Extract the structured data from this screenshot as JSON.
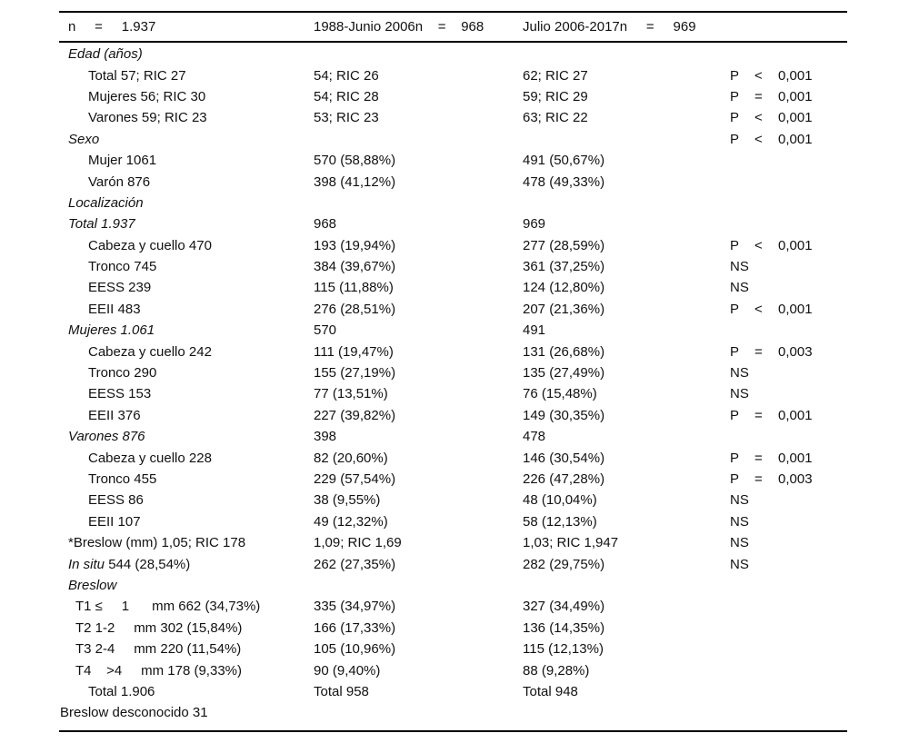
{
  "table": {
    "header": {
      "col1": "n     =     1.937",
      "col2": "1988-Junio 2006n    =    968",
      "col3": "Julio 2006-2017n     =     969"
    },
    "rows": [
      {
        "li": "Edad (años)",
        "lr": "",
        "ind": 0,
        "c2": "",
        "c3": "",
        "p": "",
        "op": "",
        "v": ""
      },
      {
        "li": "",
        "lr": "Total 57; RIC 27",
        "ind": 1,
        "c2": "54; RIC 26",
        "c3": "62; RIC 27",
        "p": "P",
        "op": "<",
        "v": "0,001"
      },
      {
        "li": "",
        "lr": "Mujeres 56; RIC 30",
        "ind": 1,
        "c2": "54; RIC 28",
        "c3": "59; RIC 29",
        "p": "P",
        "op": "=",
        "v": "0,001"
      },
      {
        "li": "",
        "lr": "Varones 59; RIC 23",
        "ind": 1,
        "c2": "53; RIC 23",
        "c3": "63; RIC 22",
        "p": "P",
        "op": "<",
        "v": "0,001"
      },
      {
        "li": "Sexo",
        "lr": "",
        "ind": 0,
        "c2": "",
        "c3": "",
        "p": "P",
        "op": "<",
        "v": "0,001"
      },
      {
        "li": "",
        "lr": "Mujer 1061",
        "ind": 1,
        "c2": "570 (58,88%)",
        "c3": "491 (50,67%)",
        "p": "",
        "op": "",
        "v": ""
      },
      {
        "li": "",
        "lr": "Varón 876",
        "ind": 1,
        "c2": "398 (41,12%)",
        "c3": "478 (49,33%)",
        "p": "",
        "op": "",
        "v": ""
      },
      {
        "li": "Localización",
        "lr": "",
        "ind": 0,
        "c2": "",
        "c3": "",
        "p": "",
        "op": "",
        "v": ""
      },
      {
        "li": "Total 1.937",
        "lr": "",
        "ind": 0,
        "c2": "968",
        "c3": "969",
        "p": "",
        "op": "",
        "v": ""
      },
      {
        "li": "",
        "lr": "Cabeza y cuello 470",
        "ind": 1,
        "c2": "193 (19,94%)",
        "c3": "277 (28,59%)",
        "p": "P",
        "op": "<",
        "v": "0,001"
      },
      {
        "li": "",
        "lr": "Tronco 745",
        "ind": 1,
        "c2": "384 (39,67%)",
        "c3": "361 (37,25%)",
        "p": "NS",
        "op": "",
        "v": ""
      },
      {
        "li": "",
        "lr": "EESS 239",
        "ind": 1,
        "c2": "115 (11,88%)",
        "c3": "124 (12,80%)",
        "p": "NS",
        "op": "",
        "v": ""
      },
      {
        "li": "",
        "lr": "EEII 483",
        "ind": 1,
        "c2": "276 (28,51%)",
        "c3": "207 (21,36%)",
        "p": "P",
        "op": "<",
        "v": "0,001"
      },
      {
        "li": "Mujeres 1.061",
        "lr": "",
        "ind": 0,
        "c2": "570",
        "c3": "491",
        "p": "",
        "op": "",
        "v": ""
      },
      {
        "li": "",
        "lr": "Cabeza y cuello 242",
        "ind": 1,
        "c2": "111 (19,47%)",
        "c3": "131 (26,68%)",
        "p": "P",
        "op": "=",
        "v": "0,003"
      },
      {
        "li": "",
        "lr": "Tronco 290",
        "ind": 1,
        "c2": "155 (27,19%)",
        "c3": "135 (27,49%)",
        "p": "NS",
        "op": "",
        "v": ""
      },
      {
        "li": "",
        "lr": "EESS 153",
        "ind": 1,
        "c2": "77 (13,51%)",
        "c3": "76 (15,48%)",
        "p": "NS",
        "op": "",
        "v": ""
      },
      {
        "li": "",
        "lr": "EEII 376",
        "ind": 1,
        "c2": "227 (39,82%)",
        "c3": "149 (30,35%)",
        "p": "P",
        "op": "=",
        "v": "0,001"
      },
      {
        "li": "Varones 876",
        "lr": "",
        "ind": 0,
        "c2": "398",
        "c3": "478",
        "p": "",
        "op": "",
        "v": ""
      },
      {
        "li": "",
        "lr": "Cabeza y cuello 228",
        "ind": 1,
        "c2": "82 (20,60%)",
        "c3": "146 (30,54%)",
        "p": "P",
        "op": "=",
        "v": "0,001"
      },
      {
        "li": "",
        "lr": "Tronco 455",
        "ind": 1,
        "c2": "229 (57,54%)",
        "c3": "226 (47,28%)",
        "p": "P",
        "op": "=",
        "v": "0,003"
      },
      {
        "li": "",
        "lr": "EESS 86",
        "ind": 1,
        "c2": "38 (9,55%)",
        "c3": "48 (10,04%)",
        "p": "NS",
        "op": "",
        "v": ""
      },
      {
        "li": "",
        "lr": "EEII 107",
        "ind": 1,
        "c2": "49 (12,32%)",
        "c3": "58 (12,13%)",
        "p": "NS",
        "op": "",
        "v": ""
      },
      {
        "li": "",
        "lr": "*Breslow (mm) 1,05; RIC 178",
        "ind": 0,
        "c2": "1,09; RIC 1,69",
        "c3": "1,03; RIC 1,947",
        "p": "NS",
        "op": "",
        "v": ""
      },
      {
        "li": "In situ",
        "lr": " 544 (28,54%)",
        "ind": 0,
        "c2": "262 (27,35%)",
        "c3": "282 (29,75%)",
        "p": "NS",
        "op": "",
        "v": ""
      },
      {
        "li": "Breslow",
        "lr": "",
        "ind": 0,
        "c2": "",
        "c3": "",
        "p": "",
        "op": "",
        "v": ""
      },
      {
        "li": "",
        "lr": "T1 ≤     1      mm 662 (34,73%)",
        "ind": 2,
        "c2": "335 (34,97%)",
        "c3": "327 (34,49%)",
        "p": "",
        "op": "",
        "v": ""
      },
      {
        "li": "",
        "lr": "T2 1-2     mm 302 (15,84%)",
        "ind": 2,
        "c2": "166 (17,33%)",
        "c3": "136 (14,35%)",
        "p": "",
        "op": "",
        "v": ""
      },
      {
        "li": "",
        "lr": "T3 2-4     mm 220 (11,54%)",
        "ind": 2,
        "c2": "105 (10,96%)",
        "c3": "115 (12,13%)",
        "p": "",
        "op": "",
        "v": ""
      },
      {
        "li": "",
        "lr": "T4    >4     mm 178 (9,33%)",
        "ind": 2,
        "c2": "90 (9,40%)",
        "c3": "88 (9,28%)",
        "p": "",
        "op": "",
        "v": ""
      },
      {
        "li": "",
        "lr": "Total 1.906",
        "ind": 1,
        "c2": "Total 958",
        "c3": "Total 948",
        "p": "",
        "op": "",
        "v": ""
      },
      {
        "li": "",
        "lr": "Breslow desconocido 31",
        "ind": 3,
        "c2": "",
        "c3": "",
        "p": "",
        "op": "",
        "v": ""
      }
    ]
  }
}
